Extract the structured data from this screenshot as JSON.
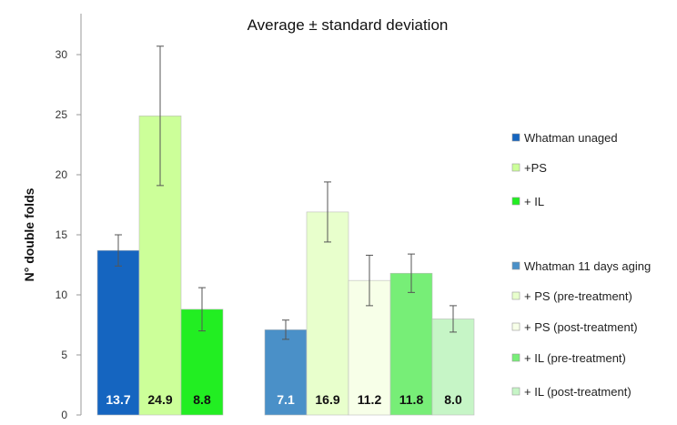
{
  "chart_data": {
    "type": "bar",
    "title": "Average ±  standard deviation",
    "ylabel": "N° double folds",
    "xlabel": "",
    "ylim": [
      0,
      32
    ],
    "yticks": [
      0,
      5,
      10,
      15,
      20,
      25,
      30
    ],
    "grid": false,
    "legend_position": "right",
    "groups": [
      {
        "series": [
          {
            "name": "Whatman unaged",
            "value": 13.7,
            "error": 1.3,
            "label": "13.7",
            "color": "#1565c0",
            "label_color": "#ffffff"
          },
          {
            "name": "+PS",
            "value": 24.9,
            "error": 5.8,
            "label": "24.9",
            "color": "#ccff99",
            "label_color": "#111111"
          },
          {
            "name": "+ IL",
            "value": 8.8,
            "error": 1.8,
            "label": "8.8",
            "color": "#22ee22",
            "label_color": "#111111"
          }
        ]
      },
      {
        "series": [
          {
            "name": "Whatman 11 days aging",
            "value": 7.1,
            "error": 0.8,
            "label": "7.1",
            "color": "#4a90c8",
            "label_color": "#ffffff"
          },
          {
            "name": "+ PS (pre-treatment)",
            "value": 16.9,
            "error": 2.5,
            "label": "16.9",
            "color": "#e8ffcc",
            "label_color": "#111111"
          },
          {
            "name": "+ PS (post-treatment)",
            "value": 11.2,
            "error": 2.1,
            "label": "11.2",
            "color": "#f7ffe8",
            "label_color": "#111111"
          },
          {
            "name": "+ IL (pre-treatment)",
            "value": 11.8,
            "error": 1.6,
            "label": "11.8",
            "color": "#77ee77",
            "label_color": "#111111"
          },
          {
            "name": "+ IL (post-treatment)",
            "value": 8.0,
            "error": 1.1,
            "label": "8.0",
            "color": "#c6f5c6",
            "label_color": "#111111"
          }
        ]
      }
    ]
  }
}
